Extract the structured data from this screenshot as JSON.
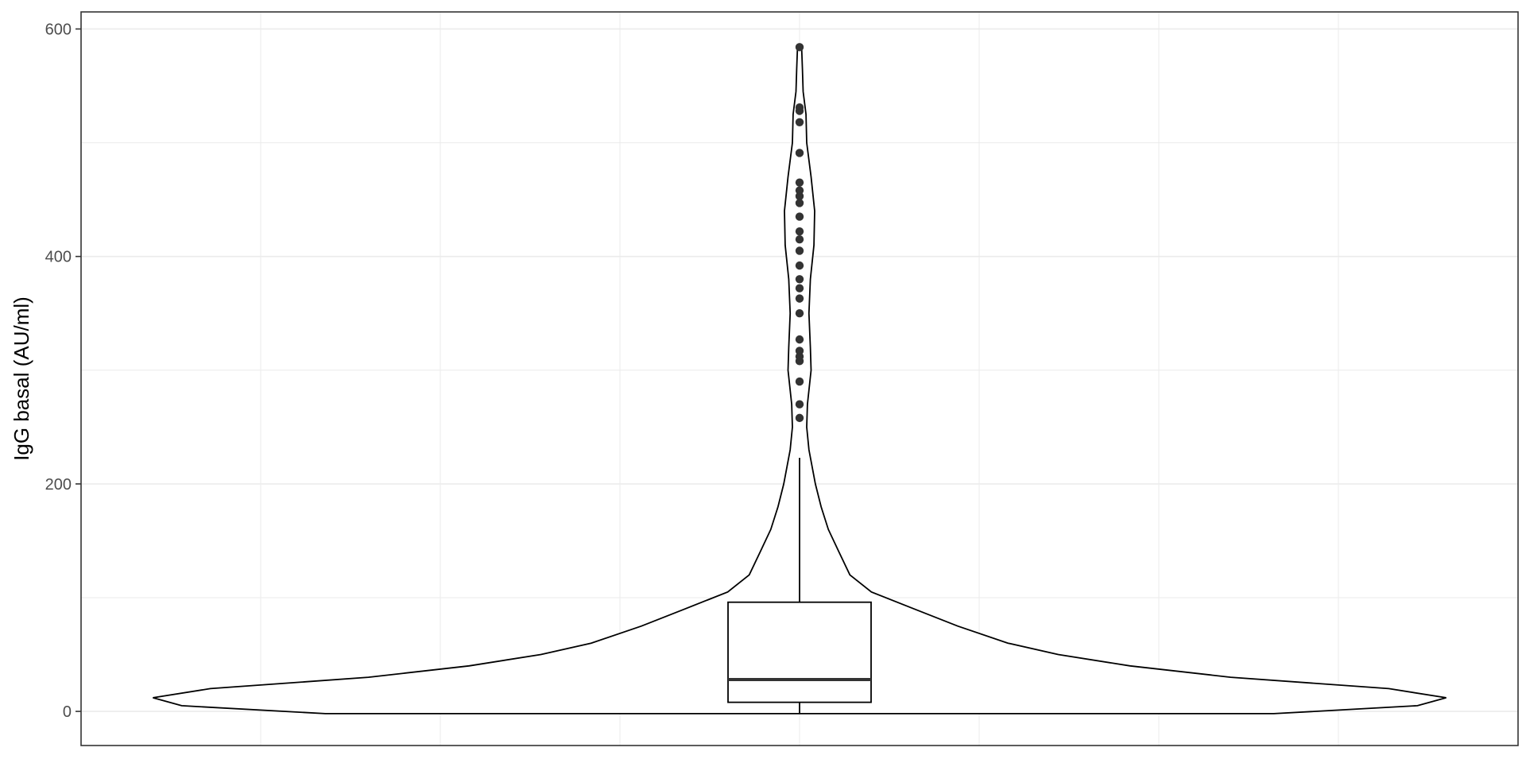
{
  "chart_data": {
    "type": "violin",
    "title": "",
    "xlabel": "",
    "ylabel": "IgG basal (AU/ml)",
    "ylim": [
      -30,
      615
    ],
    "yticks": [
      0,
      200,
      400,
      600
    ],
    "ytick_labels": [
      "0",
      "200",
      "400",
      "600"
    ],
    "grid": true,
    "legend": "none",
    "violin_profile": [
      {
        "y": -2,
        "half_width": 0.66
      },
      {
        "y": 5,
        "half_width": 0.86
      },
      {
        "y": 12,
        "half_width": 0.9
      },
      {
        "y": 20,
        "half_width": 0.82
      },
      {
        "y": 30,
        "half_width": 0.6
      },
      {
        "y": 40,
        "half_width": 0.46
      },
      {
        "y": 50,
        "half_width": 0.36
      },
      {
        "y": 60,
        "half_width": 0.29
      },
      {
        "y": 75,
        "half_width": 0.22
      },
      {
        "y": 90,
        "half_width": 0.16
      },
      {
        "y": 105,
        "half_width": 0.1
      },
      {
        "y": 120,
        "half_width": 0.07
      },
      {
        "y": 140,
        "half_width": 0.055
      },
      {
        "y": 160,
        "half_width": 0.04
      },
      {
        "y": 180,
        "half_width": 0.03
      },
      {
        "y": 200,
        "half_width": 0.022
      },
      {
        "y": 230,
        "half_width": 0.013
      },
      {
        "y": 250,
        "half_width": 0.01
      },
      {
        "y": 270,
        "half_width": 0.011
      },
      {
        "y": 300,
        "half_width": 0.016
      },
      {
        "y": 320,
        "half_width": 0.015
      },
      {
        "y": 350,
        "half_width": 0.013
      },
      {
        "y": 380,
        "half_width": 0.015
      },
      {
        "y": 410,
        "half_width": 0.02
      },
      {
        "y": 440,
        "half_width": 0.021
      },
      {
        "y": 470,
        "half_width": 0.016
      },
      {
        "y": 500,
        "half_width": 0.01
      },
      {
        "y": 525,
        "half_width": 0.009
      },
      {
        "y": 545,
        "half_width": 0.005
      },
      {
        "y": 565,
        "half_width": 0.004
      },
      {
        "y": 582,
        "half_width": 0.003
      },
      {
        "y": 585,
        "half_width": 0
      }
    ],
    "box": {
      "q1": 8,
      "median": 28,
      "q3": 96,
      "whisker_low": -2,
      "whisker_high": 223
    },
    "outliers": [
      258,
      270,
      290,
      308,
      312,
      317,
      327,
      350,
      363,
      372,
      380,
      392,
      405,
      415,
      422,
      435,
      447,
      453,
      458,
      465,
      491,
      518,
      528,
      531,
      584
    ],
    "colors": {
      "outline": "#000000",
      "points": "#333333",
      "grid": "#ebebeb",
      "panel_border": "#333333",
      "tick_text": "#4d4d4d"
    }
  }
}
